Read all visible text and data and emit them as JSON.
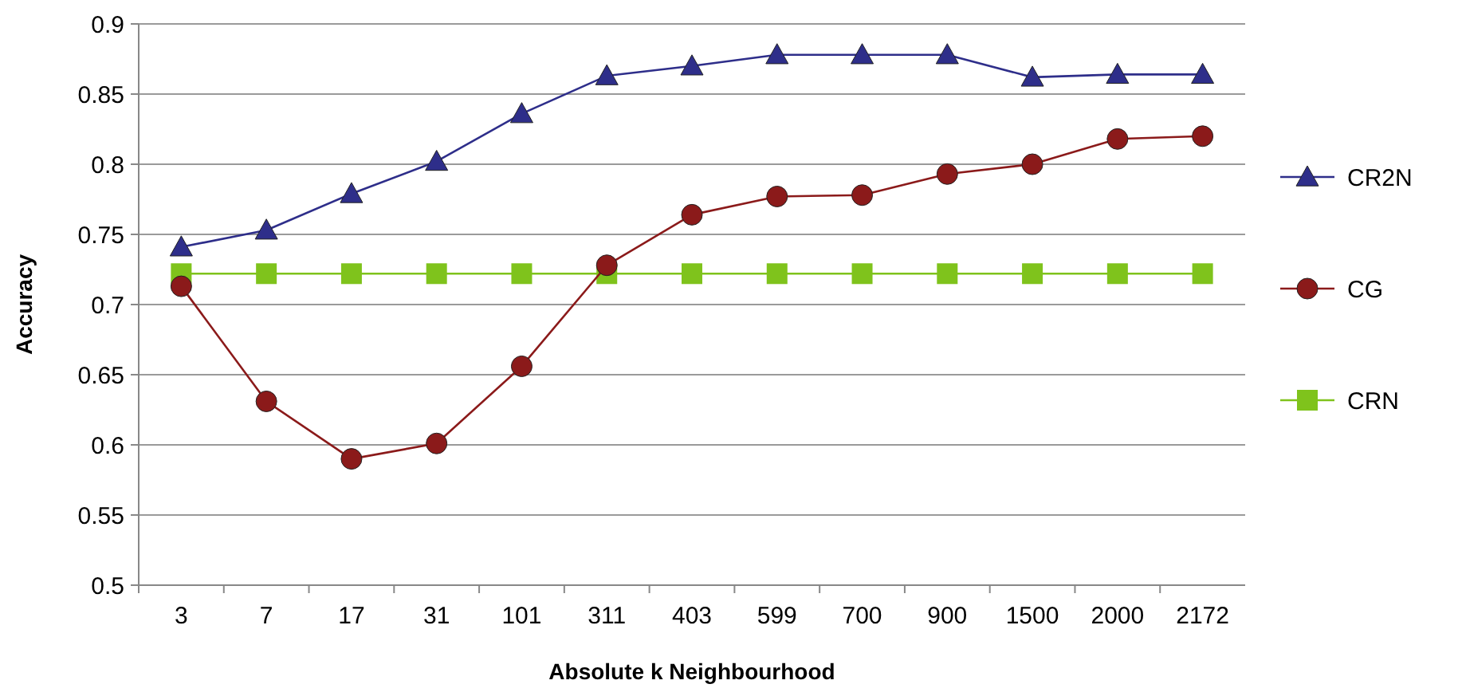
{
  "chart_data": {
    "type": "line",
    "xlabel": "Absolute k Neighbourhood",
    "ylabel": "Accuracy",
    "categories": [
      "3",
      "7",
      "17",
      "31",
      "101",
      "311",
      "403",
      "599",
      "700",
      "900",
      "1500",
      "2000",
      "2172"
    ],
    "ylim": [
      0.5,
      0.9
    ],
    "yticks": [
      {
        "value": 0.5,
        "label": "0.5"
      },
      {
        "value": 0.55,
        "label": "0.55"
      },
      {
        "value": 0.6,
        "label": "0.6"
      },
      {
        "value": 0.65,
        "label": "0.65"
      },
      {
        "value": 0.7,
        "label": "0.7"
      },
      {
        "value": 0.75,
        "label": "0.75"
      },
      {
        "value": 0.8,
        "label": "0.8"
      },
      {
        "value": 0.85,
        "label": "0.85"
      },
      {
        "value": 0.9,
        "label": "0.9"
      }
    ],
    "grid": "y",
    "legend": "right",
    "line_style": "solid",
    "series": [
      {
        "name": "CR2N",
        "color": "#2e2e8a",
        "marker": "triangle",
        "values": [
          0.741,
          0.753,
          0.779,
          0.802,
          0.836,
          0.863,
          0.87,
          0.878,
          0.878,
          0.878,
          0.862,
          0.864,
          0.864
        ]
      },
      {
        "name": "CG",
        "color": "#8b1a1a",
        "marker": "circle",
        "values": [
          0.713,
          0.631,
          0.59,
          0.601,
          0.656,
          0.728,
          0.764,
          0.777,
          0.778,
          0.793,
          0.8,
          0.818,
          0.82
        ]
      },
      {
        "name": "CRN",
        "color": "#7fc31c",
        "marker": "square",
        "values": [
          0.722,
          0.722,
          0.722,
          0.722,
          0.722,
          0.722,
          0.722,
          0.722,
          0.722,
          0.722,
          0.722,
          0.722,
          0.722
        ]
      }
    ]
  }
}
